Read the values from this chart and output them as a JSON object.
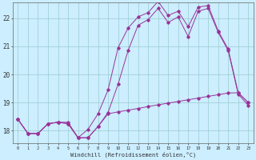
{
  "xlabel": "Windchill (Refroidissement éolien,°C)",
  "background_color": "#cceeff",
  "line_color": "#993399",
  "grid_color": "#99cccc",
  "x_ticks": [
    0,
    1,
    2,
    3,
    4,
    5,
    6,
    7,
    8,
    9,
    10,
    11,
    12,
    13,
    14,
    15,
    16,
    17,
    18,
    19,
    20,
    21,
    22,
    23
  ],
  "y_ticks": [
    18,
    19,
    20,
    21,
    22
  ],
  "ylim": [
    17.55,
    22.55
  ],
  "xlim": [
    -0.5,
    23.5
  ],
  "line1_x": [
    0,
    1,
    2,
    3,
    4,
    5,
    6,
    7,
    8,
    9,
    10,
    11,
    12,
    13,
    14,
    15,
    16,
    17,
    18,
    19,
    20,
    21,
    22,
    23
  ],
  "line1_y": [
    18.4,
    17.9,
    17.9,
    18.25,
    18.3,
    18.3,
    17.75,
    17.75,
    18.15,
    18.65,
    19.65,
    20.85,
    21.75,
    21.95,
    22.35,
    21.85,
    22.05,
    21.35,
    22.25,
    22.35,
    21.5,
    20.85,
    19.3,
    18.9
  ],
  "line2_x": [
    0,
    1,
    2,
    3,
    4,
    5,
    6,
    7,
    8,
    9,
    10,
    11,
    12,
    13,
    14,
    15,
    16,
    17,
    18,
    19,
    20,
    21,
    22,
    23
  ],
  "line2_y": [
    18.4,
    17.9,
    17.9,
    18.25,
    18.3,
    18.25,
    17.75,
    18.05,
    18.6,
    19.45,
    20.95,
    21.65,
    22.05,
    22.2,
    22.6,
    22.1,
    22.25,
    21.7,
    22.4,
    22.45,
    21.55,
    20.9,
    19.35,
    19.0
  ],
  "line3_x": [
    0,
    1,
    2,
    3,
    4,
    5,
    6,
    7,
    8,
    9,
    10,
    11,
    12,
    13,
    14,
    15,
    16,
    17,
    18,
    19,
    20,
    21,
    22,
    23
  ],
  "line3_y": [
    18.4,
    17.9,
    17.9,
    18.25,
    18.3,
    18.25,
    17.75,
    17.75,
    18.15,
    18.6,
    18.67,
    18.73,
    18.79,
    18.86,
    18.92,
    18.98,
    19.04,
    19.1,
    19.16,
    19.22,
    19.28,
    19.34,
    19.35,
    19.0
  ]
}
